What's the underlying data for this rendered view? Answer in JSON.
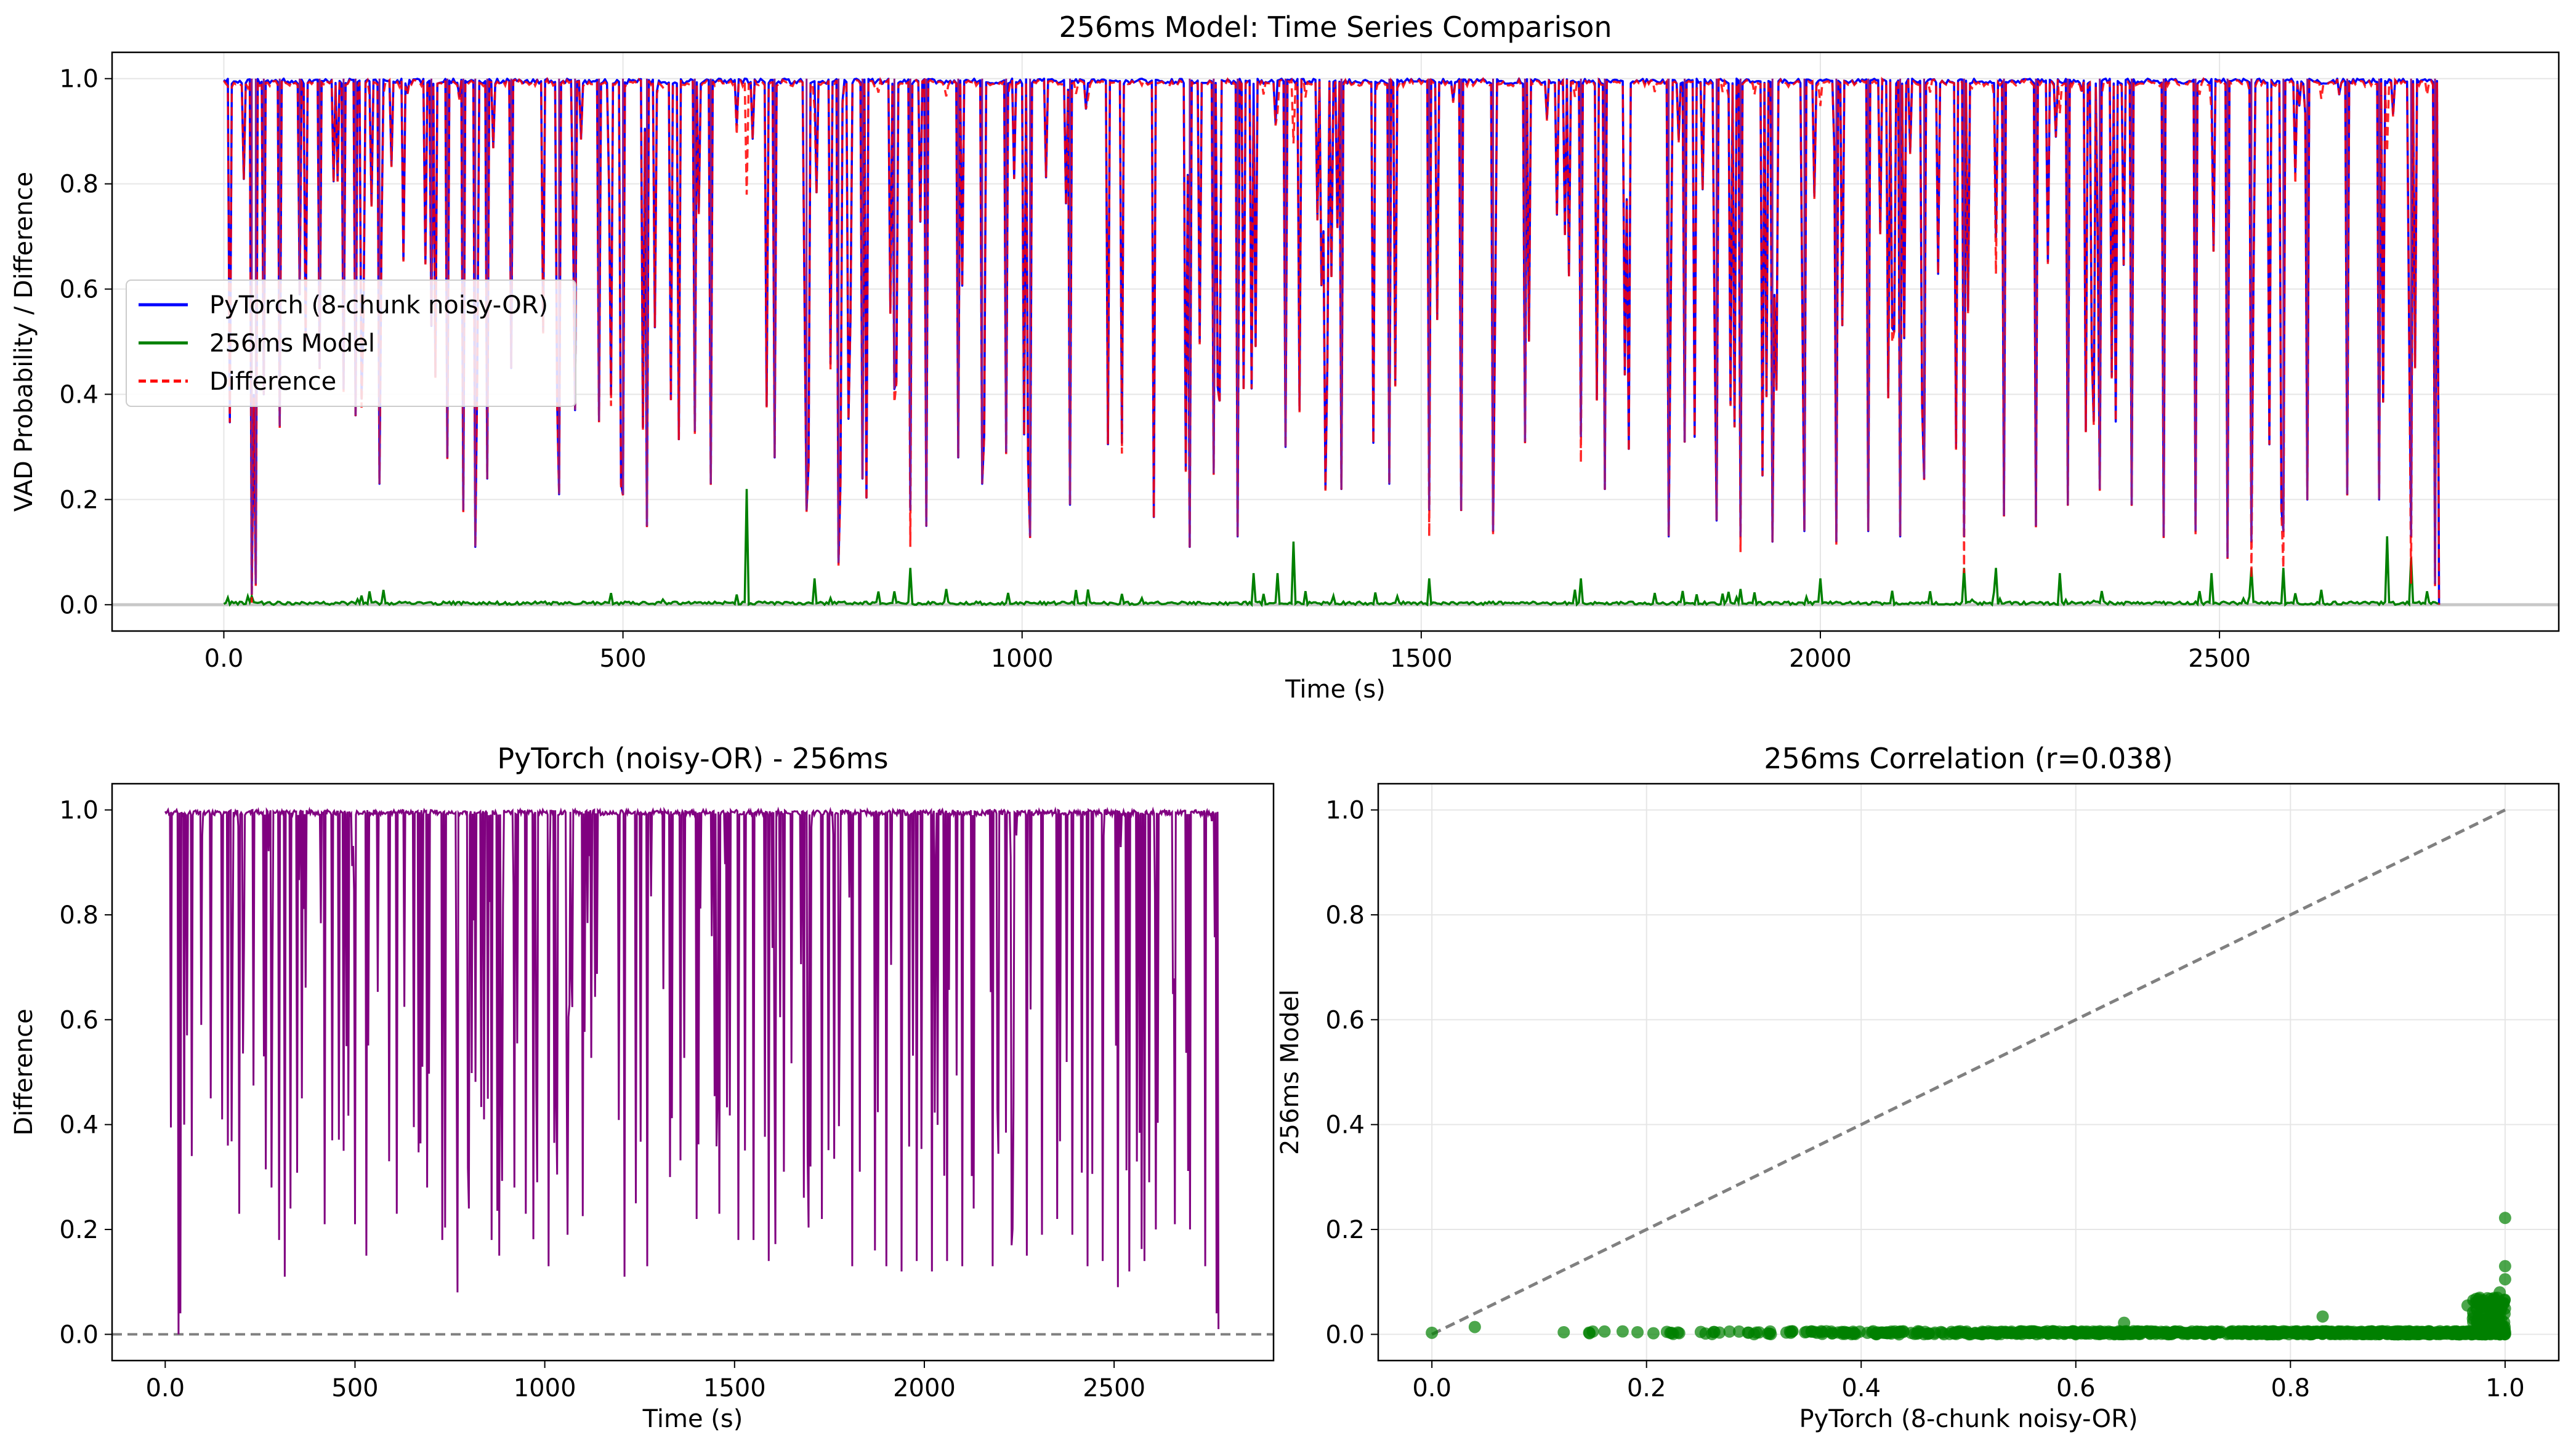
{
  "chart_data": [
    {
      "type": "line",
      "title": "256ms Model: Time Series Comparison",
      "xlabel": "Time (s)",
      "ylabel": "VAD Probability / Difference",
      "xlim": [
        -140,
        2925
      ],
      "ylim": [
        -0.05,
        1.05
      ],
      "xticks": [
        0,
        500,
        1000,
        1500,
        2000,
        2500
      ],
      "yticks": [
        0.0,
        0.2,
        0.4,
        0.6,
        0.8,
        1.0
      ],
      "grid": true,
      "legend": "center-left",
      "duration_s": 2775,
      "baseline_y": 0,
      "series": [
        {
          "name": "PyTorch (8-chunk noisy-OR)",
          "color": "#0000ff",
          "style": "solid",
          "summary": "mostly near 1.0 with frequent deep dips toward 0.1-0.4",
          "dip_points": [
            [
              35,
              0.02
            ],
            [
              40,
              0.04
            ],
            [
              50,
              0.4
            ],
            [
              70,
              0.34
            ],
            [
              95,
              0.59
            ],
            [
              120,
              0.45
            ],
            [
              150,
              0.41
            ],
            [
              165,
              0.36
            ],
            [
              195,
              0.23
            ],
            [
              260,
              0.53
            ],
            [
              280,
              0.28
            ],
            [
              300,
              0.18
            ],
            [
              315,
              0.11
            ],
            [
              330,
              0.24
            ],
            [
              360,
              0.45
            ],
            [
              420,
              0.21
            ],
            [
              440,
              0.37
            ],
            [
              470,
              0.35
            ],
            [
              500,
              0.21
            ],
            [
              530,
              0.15
            ],
            [
              590,
              0.33
            ],
            [
              610,
              0.23
            ],
            [
              690,
              0.28
            ],
            [
              730,
              0.18
            ],
            [
              770,
              0.08
            ],
            [
              800,
              0.24
            ],
            [
              840,
              0.41
            ],
            [
              860,
              0.18
            ],
            [
              880,
              0.15
            ],
            [
              920,
              0.28
            ],
            [
              950,
              0.23
            ],
            [
              980,
              0.29
            ],
            [
              1010,
              0.13
            ],
            [
              1060,
              0.19
            ],
            [
              1210,
              0.11
            ],
            [
              1240,
              0.25
            ],
            [
              1270,
              0.13
            ],
            [
              1330,
              0.3
            ],
            [
              1400,
              0.22
            ],
            [
              1460,
              0.23
            ],
            [
              1510,
              0.18
            ],
            [
              1550,
              0.18
            ],
            [
              1590,
              0.14
            ],
            [
              1630,
              0.31
            ],
            [
              1700,
              0.32
            ],
            [
              1730,
              0.22
            ],
            [
              1810,
              0.13
            ],
            [
              1830,
              0.31
            ],
            [
              1870,
              0.16
            ],
            [
              1900,
              0.13
            ],
            [
              1940,
              0.12
            ],
            [
              1980,
              0.14
            ],
            [
              2020,
              0.12
            ],
            [
              2060,
              0.14
            ],
            [
              2100,
              0.13
            ],
            [
              2130,
              0.24
            ],
            [
              2180,
              0.13
            ],
            [
              2230,
              0.17
            ],
            [
              2270,
              0.15
            ],
            [
              2310,
              0.19
            ],
            [
              2350,
              0.22
            ],
            [
              2390,
              0.19
            ],
            [
              2430,
              0.13
            ],
            [
              2470,
              0.14
            ],
            [
              2510,
              0.09
            ],
            [
              2540,
              0.12
            ],
            [
              2580,
              0.14
            ],
            [
              2610,
              0.2
            ],
            [
              2660,
              0.21
            ],
            [
              2700,
              0.2
            ],
            [
              2740,
              0.13
            ],
            [
              2770,
              0.04
            ]
          ]
        },
        {
          "name": "256ms Model",
          "color": "#008000",
          "style": "solid",
          "summary": "near 0 with small spikes up to ~0.22",
          "spike_points": [
            [
              30,
              0.016
            ],
            [
              655,
              0.22
            ],
            [
              740,
              0.05
            ],
            [
              860,
              0.07
            ],
            [
              1290,
              0.06
            ],
            [
              1320,
              0.06
            ],
            [
              1340,
              0.12
            ],
            [
              1510,
              0.05
            ],
            [
              1700,
              0.05
            ],
            [
              2000,
              0.05
            ],
            [
              2180,
              0.07
            ],
            [
              2220,
              0.07
            ],
            [
              2300,
              0.06
            ],
            [
              2490,
              0.06
            ],
            [
              2540,
              0.07
            ],
            [
              2580,
              0.07
            ],
            [
              2710,
              0.13
            ],
            [
              2740,
              0.09
            ]
          ]
        },
        {
          "name": "Difference",
          "color": "#ff0000",
          "style": "dashed",
          "summary": "PyTorch minus 256ms Model; overlays the blue trace"
        }
      ]
    },
    {
      "type": "line",
      "title": "PyTorch (noisy-OR) - 256ms",
      "xlabel": "Time (s)",
      "ylabel": "Difference",
      "xlim": [
        -140,
        2920
      ],
      "ylim": [
        -0.05,
        1.05
      ],
      "xticks": [
        0,
        500,
        1000,
        1500,
        2000,
        2500
      ],
      "yticks": [
        0.0,
        0.2,
        0.4,
        0.6,
        0.8,
        1.0
      ],
      "grid": false,
      "reference_line": {
        "y": 0,
        "style": "dashed",
        "color": "#808080"
      },
      "series": [
        {
          "name": "",
          "color": "#800080",
          "style": "solid",
          "summary": "difference near 1.0 with frequent dips; sharp drop to 0 near t=35s and t=2770s"
        }
      ]
    },
    {
      "type": "scatter",
      "title": "256ms Correlation (r=0.038)",
      "xlabel": "PyTorch (8-chunk noisy-OR)",
      "ylabel": "256ms Model",
      "xlim": [
        -0.05,
        1.05
      ],
      "ylim": [
        -0.05,
        1.05
      ],
      "xticks": [
        0.0,
        0.2,
        0.4,
        0.6,
        0.8,
        1.0
      ],
      "yticks": [
        0.0,
        0.2,
        0.4,
        0.6,
        0.8,
        1.0
      ],
      "grid": true,
      "identity_line": {
        "from": [
          0,
          0
        ],
        "to": [
          1,
          1
        ],
        "style": "dashed",
        "color": "#808080"
      },
      "points_color": "#008000",
      "highlight_points": [
        [
          0.0,
          0.003
        ],
        [
          0.04,
          0.014
        ],
        [
          0.645,
          0.022
        ],
        [
          0.83,
          0.034
        ],
        [
          0.965,
          0.055
        ],
        [
          0.97,
          0.03
        ],
        [
          0.985,
          0.04
        ],
        [
          0.99,
          0.06
        ],
        [
          0.995,
          0.08
        ],
        [
          1.0,
          0.13
        ],
        [
          1.0,
          0.105
        ],
        [
          1.0,
          0.222
        ]
      ]
    }
  ]
}
